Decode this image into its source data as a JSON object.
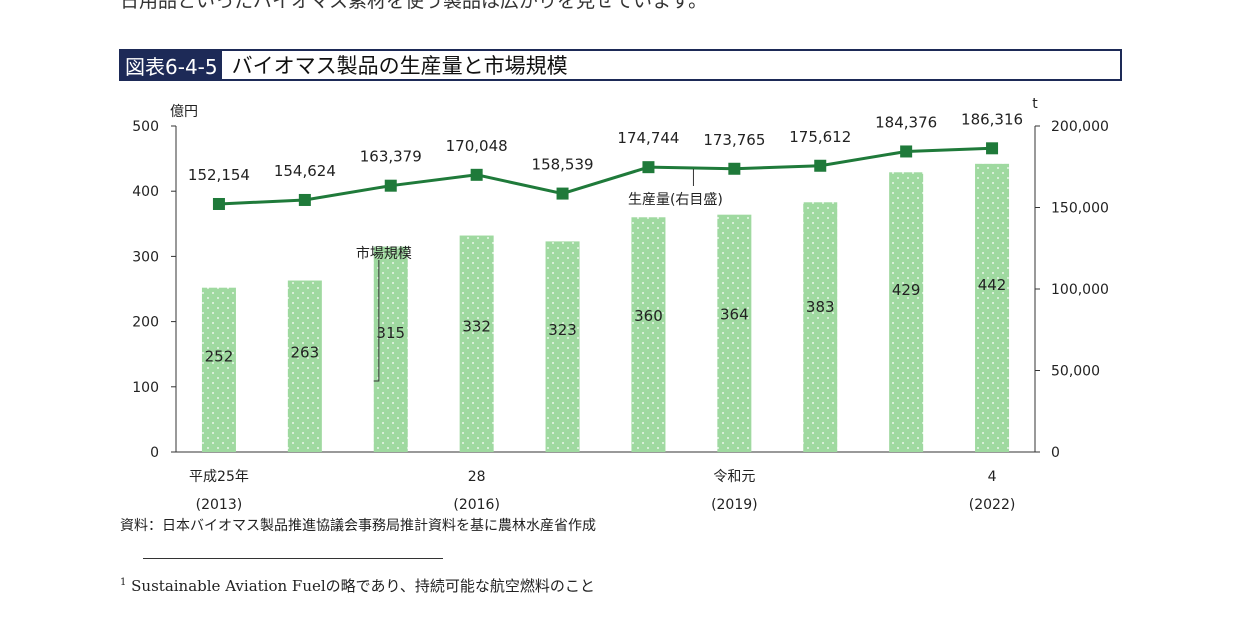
{
  "intro_line": "日用品といったバイオマス素材を使う製品は広がりを見せています。",
  "figure": {
    "label": "図表6-4-5",
    "title": "バイオマス製品の生産量と市場規模"
  },
  "chart_data": {
    "type": "bar+line",
    "left_axis_unit": "億円",
    "right_axis_unit": "t",
    "left_ylim": [
      0,
      500
    ],
    "left_ticks": [
      "0",
      "100",
      "200",
      "300",
      "400",
      "500"
    ],
    "right_ylim": [
      0,
      200000
    ],
    "right_ticks": [
      "0",
      "50,000",
      "100,000",
      "150,000",
      "200,000"
    ],
    "x_tick_labels": [
      {
        "index": 0,
        "line1": "平成25年",
        "line2": "(2013)"
      },
      {
        "index": 3,
        "line1": "28",
        "line2": "(2016)"
      },
      {
        "index": 6,
        "line1": "令和元",
        "line2": "(2019)"
      },
      {
        "index": 9,
        "line1": "4",
        "line2": "(2022)"
      }
    ],
    "bar_series": {
      "name": "市場規模",
      "values": [
        252,
        263,
        315,
        332,
        323,
        360,
        364,
        383,
        429,
        442
      ],
      "labels": [
        "252",
        "263",
        "315",
        "332",
        "323",
        "360",
        "364",
        "383",
        "429",
        "442"
      ],
      "color": "#9fd9a0"
    },
    "line_series": {
      "name": "生産量(右目盛)",
      "values": [
        152154,
        154624,
        163379,
        170048,
        158539,
        174744,
        173765,
        175612,
        184376,
        186316
      ],
      "labels": [
        "152,154",
        "154,624",
        "163,379",
        "170,048",
        "158,539",
        "174,744",
        "173,765",
        "175,612",
        "184,376",
        "186,316"
      ],
      "color": "#1f7a3a"
    }
  },
  "source": "資料：日本バイオマス製品推進協議会事務局推計資料を基に農林水産省作成",
  "footnote": {
    "mark": "1",
    "text": "Sustainable Aviation Fuelの略であり、持続可能な航空燃料のこと"
  }
}
